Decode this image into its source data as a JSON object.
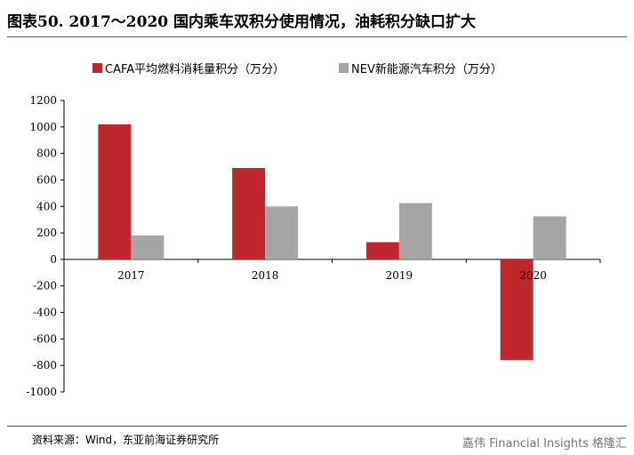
{
  "header": {
    "title": "图表50. 2017～2020 国内乘车双积分使用情况，油耗积分缺口扩大"
  },
  "footer": {
    "source": "资料来源：Wind，东亚前海证券研究所",
    "watermark": "嘉伟 Financial Insights",
    "watermark_logo": "格隆汇"
  },
  "colors": {
    "cafa": "#c0272d",
    "nev": "#a5a5a5"
  },
  "chart_data": {
    "type": "bar",
    "title": "",
    "xlabel": "",
    "ylabel": "",
    "categories": [
      "2017",
      "2018",
      "2019",
      "2020"
    ],
    "series": [
      {
        "name": "CAFA平均燃料消耗量积分（万分）",
        "values": [
          1020,
          690,
          130,
          -760
        ]
      },
      {
        "name": "NEV新能源汽车积分（万分）",
        "values": [
          180,
          400,
          425,
          325
        ]
      }
    ],
    "ylim": [
      -1000,
      1200
    ],
    "yticks": [
      1200,
      1000,
      800,
      600,
      400,
      200,
      0,
      -200,
      -400,
      -600,
      -800,
      -1000
    ],
    "ytick_labels": [
      "1200",
      "1000",
      "800",
      "600",
      "400",
      "200",
      "0",
      "-200",
      "-400",
      "-600",
      "-800",
      "-1000"
    ],
    "legend_position": "top",
    "grid": false
  }
}
